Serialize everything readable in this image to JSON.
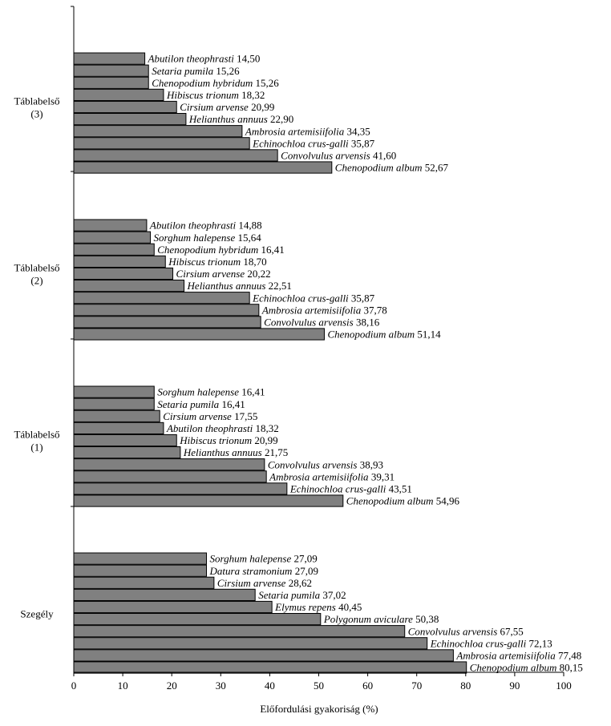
{
  "chart_data": {
    "type": "bar",
    "orientation": "horizontal",
    "xlabel": "Előfordulási gyakoriság (%)",
    "xlim": [
      0,
      100
    ],
    "xticks": [
      0,
      10,
      20,
      30,
      40,
      50,
      60,
      70,
      80,
      90,
      100
    ],
    "bar_color": "#808080",
    "groups": [
      {
        "label_lines": [
          "Táblabelső",
          "(3)"
        ],
        "bars": [
          {
            "species": "Abutilon theophrasti",
            "value_label": "14,50",
            "value": 14.5
          },
          {
            "species": "Setaria pumila",
            "value_label": "15,26",
            "value": 15.26
          },
          {
            "species": "Chenopodium hybridum",
            "value_label": "15,26",
            "value": 15.26
          },
          {
            "species": "Hibiscus trionum",
            "value_label": "18,32",
            "value": 18.32
          },
          {
            "species": "Cirsium arvense",
            "value_label": "20,99",
            "value": 20.99
          },
          {
            "species": "Helianthus annuus",
            "value_label": "22,90",
            "value": 22.9
          },
          {
            "species": "Ambrosia artemisiifolia",
            "value_label": "34,35",
            "value": 34.35
          },
          {
            "species": "Echinochloa crus-galli",
            "value_label": "35,87",
            "value": 35.87
          },
          {
            "species": "Convolvulus arvensis",
            "value_label": "41,60",
            "value": 41.6
          },
          {
            "species": "Chenopodium album",
            "value_label": "52,67",
            "value": 52.67
          }
        ]
      },
      {
        "label_lines": [
          "Táblabelső",
          "(2)"
        ],
        "bars": [
          {
            "species": "Abutilon theophrasti",
            "value_label": "14,88",
            "value": 14.88
          },
          {
            "species": "Sorghum halepense",
            "value_label": "15,64",
            "value": 15.64
          },
          {
            "species": "Chenopodium hybridum",
            "value_label": "16,41",
            "value": 16.41
          },
          {
            "species": "Hibiscus trionum",
            "value_label": "18,70",
            "value": 18.7
          },
          {
            "species": "Cirsium arvense",
            "value_label": "20,22",
            "value": 20.22
          },
          {
            "species": "Helianthus annuus",
            "value_label": "22,51",
            "value": 22.51
          },
          {
            "species": "Echinochloa crus-galli",
            "value_label": "35,87",
            "value": 35.87
          },
          {
            "species": "Ambrosia artemisiifolia",
            "value_label": "37,78",
            "value": 37.78
          },
          {
            "species": "Convolvulus arvensis",
            "value_label": "38,16",
            "value": 38.16
          },
          {
            "species": "Chenopodium album",
            "value_label": "51,14",
            "value": 51.14
          }
        ]
      },
      {
        "label_lines": [
          "Táblabelső",
          "(1)"
        ],
        "bars": [
          {
            "species": "Sorghum halepense",
            "value_label": "16,41",
            "value": 16.41
          },
          {
            "species": "Setaria pumila",
            "value_label": "16,41",
            "value": 16.41
          },
          {
            "species": "Cirsium arvense",
            "value_label": "17,55",
            "value": 17.55
          },
          {
            "species": "Abutilon theophrasti",
            "value_label": "18,32",
            "value": 18.32
          },
          {
            "species": "Hibiscus trionum",
            "value_label": "20,99",
            "value": 20.99
          },
          {
            "species": "Helianthus annuus",
            "value_label": "21,75",
            "value": 21.75
          },
          {
            "species": "Convolvulus arvensis",
            "value_label": "38,93",
            "value": 38.93
          },
          {
            "species": "Ambrosia artemisiifolia",
            "value_label": "39,31",
            "value": 39.31
          },
          {
            "species": "Echinochloa crus-galli",
            "value_label": "43,51",
            "value": 43.51
          },
          {
            "species": "Chenopodium album",
            "value_label": "54,96",
            "value": 54.96
          }
        ]
      },
      {
        "label_lines": [
          "Szegély"
        ],
        "bars": [
          {
            "species": "Sorghum halepense",
            "value_label": "27,09",
            "value": 27.09
          },
          {
            "species": "Datura stramonium",
            "value_label": "27,09",
            "value": 27.09
          },
          {
            "species": "Cirsium arvense",
            "value_label": "28,62",
            "value": 28.62
          },
          {
            "species": "Setaria pumila",
            "value_label": "37,02",
            "value": 37.02
          },
          {
            "species": "Elymus repens",
            "value_label": "40,45",
            "value": 40.45
          },
          {
            "species": "Polygonum aviculare",
            "value_label": "50,38",
            "value": 50.38
          },
          {
            "species": "Convolvulus arvensis",
            "value_label": "67,55",
            "value": 67.55
          },
          {
            "species": "Echinochloa crus-galli",
            "value_label": "72,13",
            "value": 72.13
          },
          {
            "species": "Ambrosia artemisiifolia",
            "value_label": "77,48",
            "value": 77.48
          },
          {
            "species": "Chenopodium album",
            "value_label": "80,15",
            "value": 80.15
          }
        ]
      }
    ]
  }
}
